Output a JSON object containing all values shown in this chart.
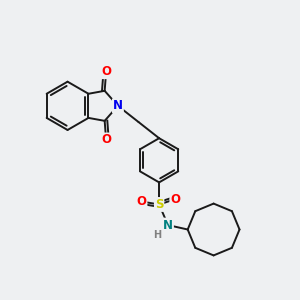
{
  "bg_color": "#eef0f2",
  "bond_color": "#1a1a1a",
  "bond_width": 1.4,
  "atom_colors": {
    "O": "#ff0000",
    "N_blue": "#0000ee",
    "S": "#cccc00",
    "N_teal": "#008080",
    "H": "#808080"
  },
  "font_size": 8.5,
  "font_size_H": 7.0,
  "xlim": [
    0,
    10
  ],
  "ylim": [
    0,
    10
  ]
}
